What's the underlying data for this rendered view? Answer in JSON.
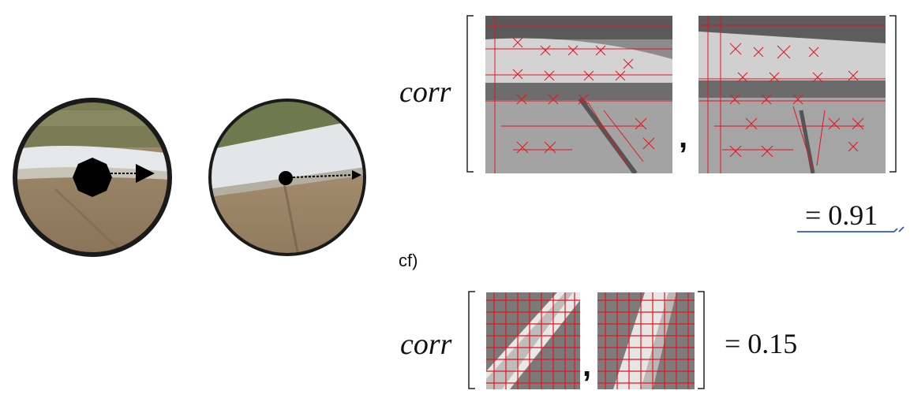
{
  "top_equation": {
    "function_label": "corr",
    "separator": ",",
    "result": "= 0.91"
  },
  "compare_label": "cf)",
  "bottom_equation": {
    "function_label": "corr",
    "separator": ",",
    "result": "= 0.15"
  },
  "colors": {
    "feature_lines": "#e8141b",
    "underline_annotation": "#2a56d6",
    "ink": "#111111"
  }
}
